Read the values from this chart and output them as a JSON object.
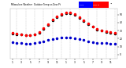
{
  "bg_color": "#ffffff",
  "plot_bg": "#ffffff",
  "grid_color": "#aaaaaa",
  "temp_color": "#ff0000",
  "dew_color": "#0000cc",
  "black_color": "#000000",
  "legend_blue": "#0000ff",
  "legend_red": "#ff0000",
  "title_text": "Milwaukee Weather  Outdoor Temp vs Dew Pt",
  "title_color": "#000000",
  "ylim": [
    -5,
    58
  ],
  "xlim": [
    -0.5,
    23.5
  ],
  "x_hours": [
    0,
    1,
    2,
    3,
    4,
    5,
    6,
    7,
    8,
    9,
    10,
    11,
    12,
    13,
    14,
    15,
    16,
    17,
    18,
    19,
    20,
    21,
    22,
    23
  ],
  "temp": [
    27,
    26,
    25,
    24,
    24,
    25,
    28,
    33,
    38,
    44,
    48,
    51,
    53,
    53,
    51,
    47,
    43,
    39,
    35,
    32,
    30,
    29,
    28,
    27
  ],
  "dew": [
    15,
    14,
    14,
    13,
    13,
    14,
    15,
    16,
    18,
    19,
    20,
    21,
    21,
    21,
    20,
    19,
    18,
    16,
    15,
    14,
    14,
    14,
    13,
    13
  ],
  "black": [
    26,
    25,
    25,
    24,
    24,
    25,
    27,
    32,
    37,
    43,
    47,
    50,
    52,
    52,
    50,
    46,
    42,
    38,
    35,
    31,
    30,
    28,
    27,
    26
  ],
  "yticks": [
    0,
    10,
    20,
    30,
    40,
    50
  ],
  "xtick_labels": [
    "1",
    "3",
    "5",
    "7",
    "9",
    "1",
    "3",
    "5",
    "7",
    "9",
    "1",
    "3"
  ],
  "grid_hours": [
    1,
    3,
    5,
    7,
    9,
    11,
    13,
    15,
    17,
    19,
    21,
    23
  ],
  "dot_size": 1.5,
  "title_fontsize": 2.5,
  "tick_fontsize": 2.2
}
